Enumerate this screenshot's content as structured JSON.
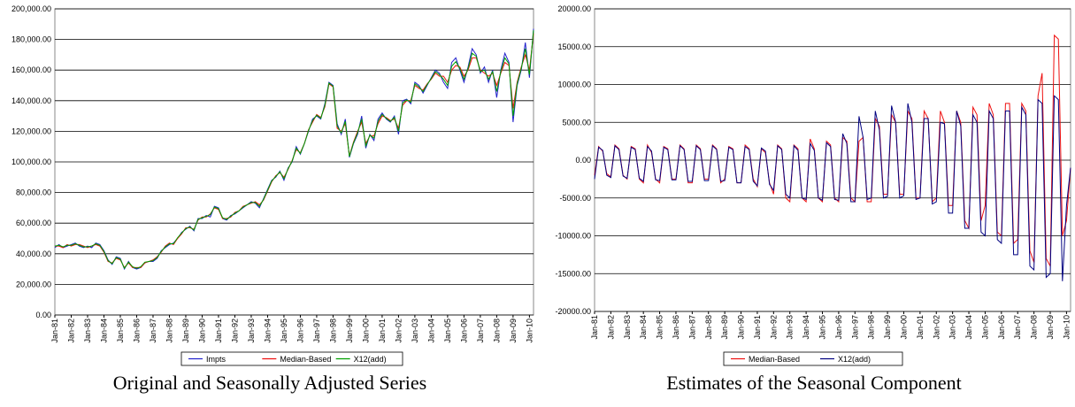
{
  "chart_data": [
    {
      "type": "line",
      "caption": "Original and Seasonally Adjusted Series",
      "categories": [
        "Jan-81",
        null,
        null,
        null,
        "Jan-82",
        null,
        null,
        null,
        "Jan-83",
        null,
        null,
        null,
        "Jan-84",
        null,
        null,
        null,
        "Jan-85",
        null,
        null,
        null,
        "Jan-86",
        null,
        null,
        null,
        "Jan-87",
        null,
        null,
        null,
        "Jan-88",
        null,
        null,
        null,
        "Jan-89",
        null,
        null,
        null,
        "Jan-90",
        null,
        null,
        null,
        "Jan-91",
        null,
        null,
        null,
        "Jan-92",
        null,
        null,
        null,
        "Jan-93",
        null,
        null,
        null,
        "Jan-94",
        null,
        null,
        null,
        "Jan-95",
        null,
        null,
        null,
        "Jan-96",
        null,
        null,
        null,
        "Jan-97",
        null,
        null,
        null,
        "Jan-98",
        null,
        null,
        null,
        "Jan-99",
        null,
        null,
        null,
        "Jan-00",
        null,
        null,
        null,
        "Jan-01",
        null,
        null,
        null,
        "Jan-02",
        null,
        null,
        null,
        "Jan-03",
        null,
        null,
        null,
        "Jan-04",
        null,
        null,
        null,
        "Jan-05",
        null,
        null,
        null,
        "Jan-06",
        null,
        null,
        null,
        "Jan-07",
        null,
        null,
        null,
        "Jan-08",
        null,
        null,
        null,
        "Jan-09",
        null,
        null,
        null,
        "Jan-10",
        null
      ],
      "ylim": [
        0,
        200000
      ],
      "yticks": [
        {
          "value": 0,
          "label": "0.00"
        },
        {
          "value": 20000,
          "label": "20,000.00"
        },
        {
          "value": 40000,
          "label": "40,000.00"
        },
        {
          "value": 60000,
          "label": "60,000.00"
        },
        {
          "value": 80000,
          "label": "80,000.00"
        },
        {
          "value": 100000,
          "label": "100,000.00"
        },
        {
          "value": 120000,
          "label": "120,000.00"
        },
        {
          "value": 140000,
          "label": "140,000.00"
        },
        {
          "value": 160000,
          "label": "160,000.00"
        },
        {
          "value": 180000,
          "label": "180,000.00"
        },
        {
          "value": 200000,
          "label": "200,000.00"
        }
      ],
      "grid": true,
      "series": [
        {
          "name": "Impts",
          "color": "#2222cc",
          "values": [
            44000,
            46000,
            44000,
            45000,
            46000,
            47000,
            45000,
            44000,
            45000,
            44000,
            47000,
            46000,
            42000,
            36000,
            33000,
            38000,
            37000,
            30000,
            35000,
            31000,
            30000,
            31000,
            34000,
            35000,
            35000,
            37000,
            42000,
            44000,
            46000,
            47000,
            50000,
            54000,
            56000,
            58000,
            55000,
            63000,
            63000,
            65000,
            64000,
            71000,
            70000,
            63000,
            62000,
            65000,
            66000,
            68000,
            70000,
            72000,
            74000,
            73000,
            70000,
            76000,
            82000,
            88000,
            90000,
            94000,
            88000,
            96000,
            100000,
            110000,
            105000,
            112000,
            120000,
            128000,
            130000,
            128000,
            138000,
            152000,
            150000,
            125000,
            118000,
            128000,
            103000,
            112000,
            118000,
            130000,
            109000,
            118000,
            114000,
            128000,
            132000,
            128000,
            126000,
            130000,
            118000,
            140000,
            141000,
            138000,
            152000,
            150000,
            145000,
            150000,
            155000,
            160000,
            158000,
            152000,
            148000,
            165000,
            168000,
            160000,
            152000,
            162000,
            174000,
            170000,
            158000,
            162000,
            152000,
            160000,
            142000,
            160000,
            171000,
            165000,
            126000,
            150000,
            160000,
            178000,
            155000,
            187000
          ]
        },
        {
          "name": "Median-Based",
          "color": "#ee1111",
          "values": [
            45000,
            45000,
            44000,
            46000,
            45000,
            46000,
            46000,
            45000,
            44000,
            45000,
            46000,
            45000,
            41000,
            35000,
            34000,
            37000,
            36000,
            31000,
            34000,
            31000,
            31000,
            31000,
            34000,
            35000,
            36000,
            38000,
            41000,
            45000,
            47000,
            46000,
            50000,
            53000,
            57000,
            57000,
            56000,
            62000,
            64000,
            64000,
            66000,
            70000,
            69000,
            63000,
            63000,
            64000,
            67000,
            68000,
            71000,
            72000,
            73000,
            74000,
            72000,
            75000,
            81000,
            87000,
            91000,
            93000,
            90000,
            95000,
            101000,
            108000,
            106000,
            112000,
            121000,
            126000,
            131000,
            129000,
            136000,
            151000,
            149000,
            122000,
            120000,
            125000,
            104000,
            113000,
            120000,
            126000,
            112000,
            117000,
            117000,
            125000,
            130000,
            129000,
            127000,
            128000,
            122000,
            137000,
            140000,
            140000,
            150000,
            148000,
            147000,
            151000,
            154000,
            158000,
            156000,
            156000,
            152000,
            160000,
            163000,
            162000,
            156000,
            160000,
            168000,
            168000,
            160000,
            158000,
            156000,
            158000,
            150000,
            158000,
            165000,
            163000,
            135000,
            152000,
            162000,
            170000,
            160000,
            184000
          ]
        },
        {
          "name": "X12(add)",
          "color": "#00a000",
          "values": [
            45000,
            45500,
            44500,
            45500,
            45500,
            46500,
            45500,
            44500,
            44500,
            45000,
            46500,
            45500,
            41500,
            35500,
            33500,
            37500,
            36500,
            30500,
            34500,
            31500,
            30500,
            31500,
            34500,
            35000,
            35500,
            37500,
            41500,
            44500,
            46500,
            46500,
            50500,
            53500,
            56500,
            57500,
            55500,
            62500,
            63500,
            64500,
            65500,
            70500,
            69500,
            63500,
            62500,
            64500,
            66500,
            68000,
            70500,
            72000,
            73500,
            73500,
            71000,
            75500,
            81500,
            87500,
            90500,
            93500,
            89000,
            95500,
            100500,
            109000,
            105500,
            112000,
            120500,
            127000,
            130500,
            128500,
            137000,
            151500,
            149500,
            123500,
            119000,
            126500,
            103500,
            112500,
            119000,
            128000,
            110500,
            117500,
            115500,
            126500,
            131000,
            128500,
            126500,
            129000,
            120000,
            138500,
            140500,
            139000,
            151000,
            149000,
            146000,
            150500,
            154500,
            159000,
            157000,
            154000,
            150000,
            162500,
            165500,
            161000,
            154000,
            161000,
            171000,
            169000,
            159000,
            160000,
            154000,
            159000,
            146000,
            159000,
            168000,
            164000,
            130000,
            151000,
            161000,
            174000,
            157000,
            186000
          ]
        }
      ]
    },
    {
      "type": "line",
      "caption": "Estimates of the Seasonal Component",
      "categories": [
        "Jan-81",
        null,
        null,
        null,
        "Jan-82",
        null,
        null,
        null,
        "Jan-83",
        null,
        null,
        null,
        "Jan-84",
        null,
        null,
        null,
        "Jan-85",
        null,
        null,
        null,
        "Jan-86",
        null,
        null,
        null,
        "Jan-87",
        null,
        null,
        null,
        "Jan-88",
        null,
        null,
        null,
        "Jan-89",
        null,
        null,
        null,
        "Jan-90",
        null,
        null,
        null,
        "Jan-91",
        null,
        null,
        null,
        "Jan-92",
        null,
        null,
        null,
        "Jan-93",
        null,
        null,
        null,
        "Jan-94",
        null,
        null,
        null,
        "Jan-95",
        null,
        null,
        null,
        "Jan-96",
        null,
        null,
        null,
        "Jan-97",
        null,
        null,
        null,
        "Jan-98",
        null,
        null,
        null,
        "Jan-99",
        null,
        null,
        null,
        "Jan-00",
        null,
        null,
        null,
        "Jan-01",
        null,
        null,
        null,
        "Jan-02",
        null,
        null,
        null,
        "Jan-03",
        null,
        null,
        null,
        "Jan-04",
        null,
        null,
        null,
        "Jan-05",
        null,
        null,
        null,
        "Jan-06",
        null,
        null,
        null,
        "Jan-07",
        null,
        null,
        null,
        "Jan-08",
        null,
        null,
        null,
        "Jan-09",
        null,
        null,
        null,
        "Jan-10",
        null
      ],
      "ylim": [
        -20000,
        20000
      ],
      "yticks": [
        {
          "value": -20000,
          "label": "-20000.00"
        },
        {
          "value": -15000,
          "label": "-15000.00"
        },
        {
          "value": -10000,
          "label": "-10000.00"
        },
        {
          "value": -5000,
          "label": "-5000.00"
        },
        {
          "value": 0,
          "label": "0.00"
        },
        {
          "value": 5000,
          "label": "5000.00"
        },
        {
          "value": 10000,
          "label": "10000.00"
        },
        {
          "value": 15000,
          "label": "15000.00"
        },
        {
          "value": 20000,
          "label": "20000.00"
        }
      ],
      "grid": true,
      "series": [
        {
          "name": "Median-Based",
          "color": "#ee1111",
          "values": [
            -2000,
            1800,
            1200,
            -1800,
            -2200,
            2000,
            1500,
            -2000,
            -2500,
            1800,
            1500,
            -2500,
            -3000,
            2000,
            1000,
            -2500,
            -3000,
            1800,
            1500,
            -2500,
            -2500,
            2000,
            1500,
            -3000,
            -3000,
            2000,
            1500,
            -2500,
            -2500,
            2000,
            1500,
            -3000,
            -2500,
            1800,
            1500,
            -3000,
            -3000,
            2000,
            1500,
            -2500,
            -3500,
            1500,
            1000,
            -3000,
            -4500,
            2000,
            1500,
            -5000,
            -5500,
            2000,
            1500,
            -5000,
            -5500,
            2800,
            1500,
            -5000,
            -5500,
            2500,
            2000,
            -5000,
            -5500,
            3000,
            2500,
            -5000,
            -5500,
            2500,
            3000,
            -5500,
            -5500,
            5500,
            4500,
            -4500,
            -4500,
            6000,
            5000,
            -4500,
            -4500,
            6500,
            5500,
            -5000,
            -5000,
            6500,
            5500,
            -5500,
            -5000,
            6500,
            5000,
            -6000,
            -6000,
            6500,
            5000,
            -8000,
            -9000,
            7000,
            6000,
            -8000,
            -6000,
            7500,
            6000,
            -9500,
            -10000,
            7500,
            7500,
            -11000,
            -10500,
            7500,
            6500,
            -12000,
            -13500,
            8500,
            11500,
            -13000,
            -14000,
            16500,
            16000,
            -10000,
            -8000,
            -1000
          ]
        },
        {
          "name": "X12(add)",
          "color": "#000080",
          "values": [
            -2500,
            1700,
            1300,
            -2000,
            -2300,
            1900,
            1400,
            -2100,
            -2400,
            1700,
            1400,
            -2400,
            -2800,
            1800,
            1200,
            -2600,
            -2700,
            1700,
            1400,
            -2600,
            -2600,
            1900,
            1400,
            -2800,
            -2800,
            1900,
            1400,
            -2700,
            -2700,
            1900,
            1400,
            -2800,
            -2700,
            1700,
            1400,
            -3000,
            -3000,
            1800,
            1400,
            -2800,
            -3400,
            1600,
            1200,
            -3200,
            -4000,
            1900,
            1400,
            -4500,
            -5000,
            1900,
            1300,
            -5000,
            -5200,
            2200,
            1300,
            -5000,
            -5300,
            2300,
            1800,
            -5200,
            -5300,
            3500,
            2200,
            -5500,
            -5500,
            5800,
            3000,
            -5200,
            -5000,
            6500,
            4000,
            -5000,
            -4800,
            7200,
            5000,
            -5000,
            -4700,
            7500,
            5000,
            -5200,
            -5000,
            5500,
            5500,
            -5800,
            -5500,
            5000,
            4800,
            -7000,
            -7000,
            6500,
            4500,
            -9000,
            -9000,
            6000,
            5000,
            -9500,
            -10000,
            6500,
            5500,
            -10500,
            -11000,
            6500,
            6500,
            -12500,
            -12500,
            7000,
            6000,
            -14000,
            -14500,
            8000,
            7500,
            -15500,
            -15000,
            8500,
            8000,
            -16000,
            -6000,
            -1000
          ]
        }
      ]
    }
  ]
}
